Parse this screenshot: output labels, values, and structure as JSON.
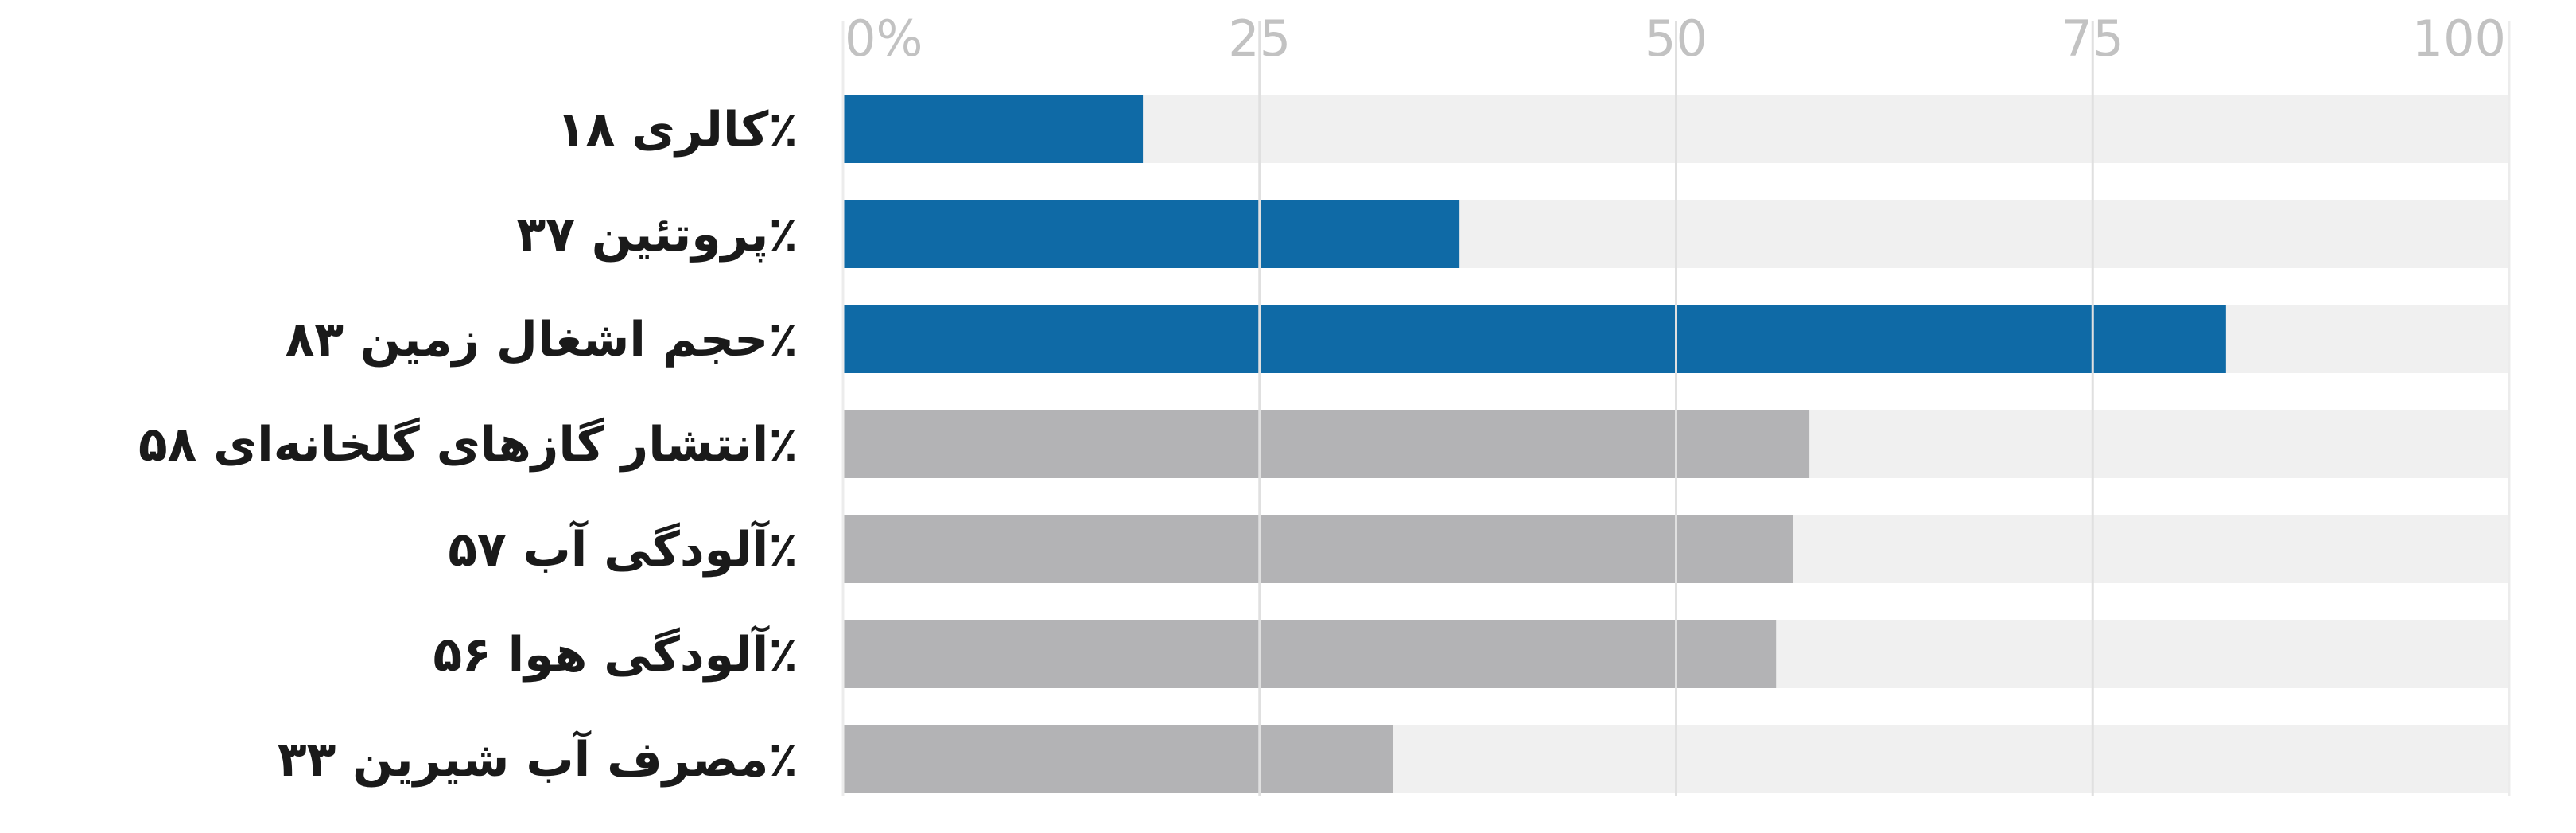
{
  "chart_data": {
    "type": "bar",
    "orientation": "horizontal",
    "title": "",
    "xlabel": "",
    "ylabel": "",
    "xlim": [
      0,
      100
    ],
    "x_ticks": [
      0,
      25,
      50,
      75,
      100
    ],
    "x_tick_labels": [
      "0%",
      "25",
      "50",
      "75",
      "100"
    ],
    "grid": true,
    "categories": [
      "کالری ۱۸٪",
      "پروتئین ۳۷٪",
      "حجم اشغال زمین ۸۳٪",
      "انتشار گازهای گلخانه‌ای ۵۸٪",
      "آلودگی آب ۵۷٪",
      "آلودگی هوا ۵۶٪",
      "مصرف آب شیرین ۳۳٪"
    ],
    "values": [
      18,
      37,
      83,
      58,
      57,
      56,
      33
    ],
    "bar_colors": [
      "#0f6aa6",
      "#0f6aa6",
      "#0f6aa6",
      "#b3b3b5",
      "#b3b3b5",
      "#b3b3b5",
      "#b3b3b5"
    ],
    "track_color": "#f0f0f0",
    "gridline_color": "#e0e0e0",
    "tick_color": "#c2c2c2",
    "label_color": "#1a1a1a"
  }
}
